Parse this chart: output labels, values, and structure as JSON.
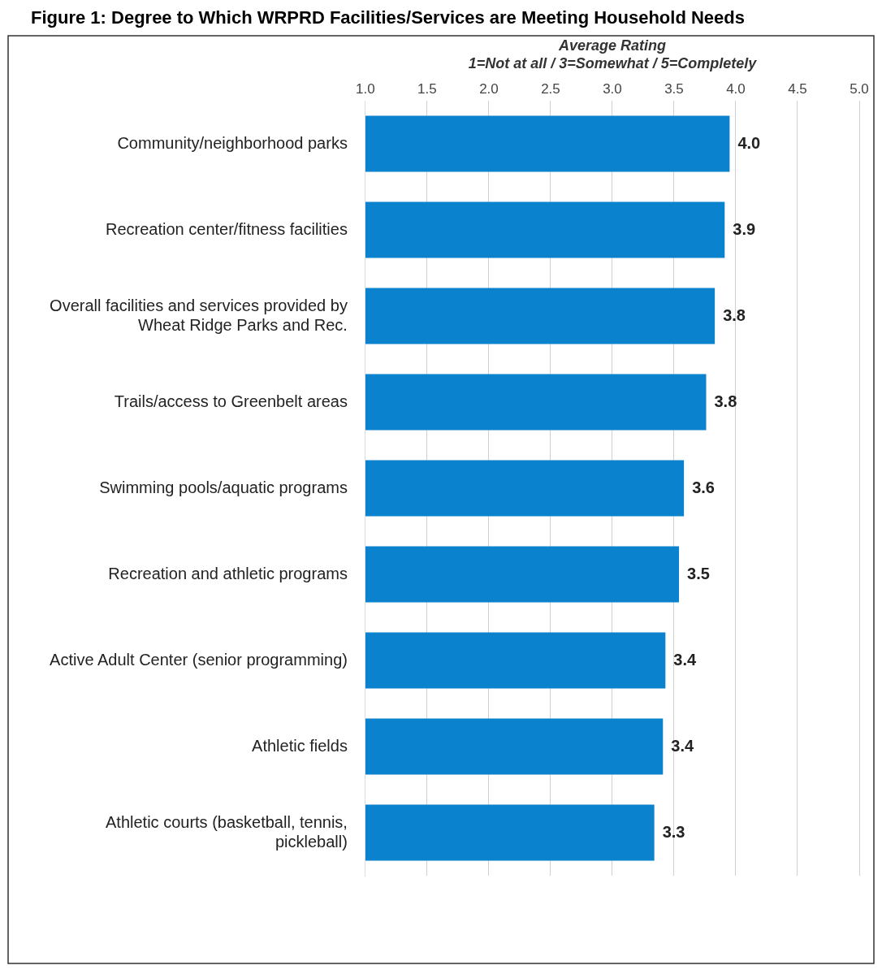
{
  "chart_data": {
    "type": "bar",
    "orientation": "horizontal",
    "title": "Figure 1: Degree to Which WRPRD Facilities/Services are Meeting Household Needs",
    "xlabel": "Average Rating\n1=Not at all / 3=Somewhat / 5=Completely",
    "categories": [
      "Community/neighborhood parks",
      "Recreation center/fitness facilities",
      "Overall facilities and services provided by Wheat Ridge Parks and Rec.",
      "Trails/access to Greenbelt areas",
      "Swimming pools/aquatic programs",
      "Recreation and athletic programs",
      "Active Adult Center (senior programming)",
      "Athletic fields",
      "Athletic courts (basketball, tennis, pickleball)"
    ],
    "values": [
      3.95,
      3.91,
      3.83,
      3.76,
      3.58,
      3.54,
      3.43,
      3.41,
      3.34
    ],
    "value_labels": [
      "4.0",
      "3.9",
      "3.8",
      "3.8",
      "3.6",
      "3.5",
      "3.4",
      "3.4",
      "3.3"
    ],
    "color": "#0b82cd",
    "xlim": [
      1,
      5
    ],
    "xticks": [
      {
        "value": 1,
        "label": "1.0"
      },
      {
        "value": 1.5,
        "label": "1.5"
      },
      {
        "value": 2,
        "label": "2.0"
      },
      {
        "value": 2.5,
        "label": "2.5"
      },
      {
        "value": 3,
        "label": "3.0"
      },
      {
        "value": 3.5,
        "label": "3.5"
      },
      {
        "value": 4,
        "label": "4.0"
      },
      {
        "value": 4.5,
        "label": "4.5"
      },
      {
        "value": 5,
        "label": "5.0"
      }
    ],
    "grid": "x",
    "legend": false
  }
}
